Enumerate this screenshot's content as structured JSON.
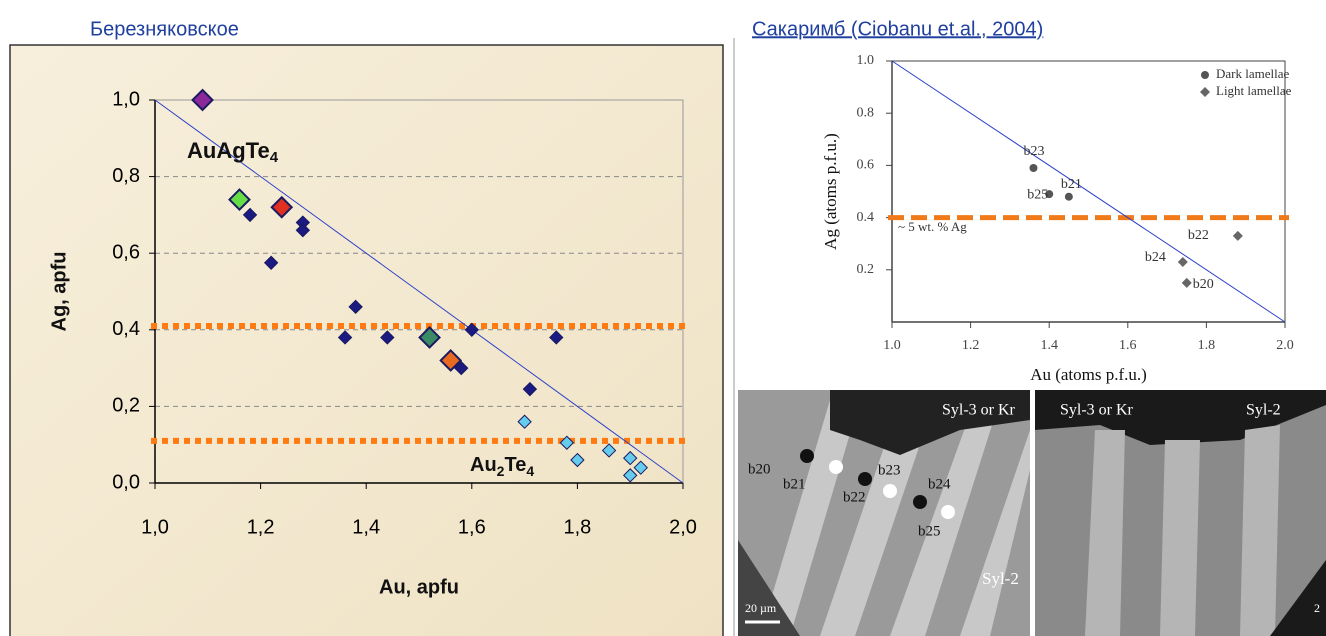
{
  "chart_data": [
    {
      "type": "scatter",
      "title": "Березняковское",
      "x_label": "Au, apfu",
      "y_label": "Ag, apfu",
      "xlim": [
        1.0,
        2.0
      ],
      "ylim": [
        0.0,
        1.0
      ],
      "xticks": [
        {
          "value": 1.0,
          "label": "1,0"
        },
        {
          "value": 1.2,
          "label": "1,2"
        },
        {
          "value": 1.4,
          "label": "1,4"
        },
        {
          "value": 1.6,
          "label": "1,6"
        },
        {
          "value": 1.8,
          "label": "1,8"
        },
        {
          "value": 2.0,
          "label": "2,0"
        }
      ],
      "yticks": [
        {
          "value": 0.0,
          "label": "0,0"
        },
        {
          "value": 0.2,
          "label": "0,2"
        },
        {
          "value": 0.4,
          "label": "0,4"
        },
        {
          "value": 0.6,
          "label": "0,6"
        },
        {
          "value": 0.8,
          "label": "0,8"
        },
        {
          "value": 1.0,
          "label": "1,0"
        }
      ],
      "grid": true,
      "annotations": [
        [
          "AuAgTe",
          "4"
        ],
        [
          "Au",
          "2",
          "Te",
          "4"
        ]
      ],
      "reference_lines": [
        {
          "x": [
            1.0,
            2.0
          ],
          "values": [
            1.0,
            0.0
          ],
          "color": "#2a3fc8"
        }
      ],
      "hlines": [
        {
          "value": 0.41,
          "color": "#ff7a10"
        },
        {
          "value": 0.11,
          "color": "#ff7a10"
        }
      ],
      "series": [
        {
          "color": "#1a1a80",
          "marker": "diamond",
          "x": [
            1.18,
            1.22,
            1.28,
            1.28,
            1.38,
            1.36,
            1.44,
            1.6,
            1.58,
            1.76,
            1.71
          ],
          "values": [
            0.7,
            0.575,
            0.68,
            0.66,
            0.46,
            0.38,
            0.38,
            0.4,
            0.3,
            0.38,
            0.245
          ]
        },
        {
          "color": "#66ccee",
          "marker": "diamond",
          "x": [
            1.7,
            1.78,
            1.8,
            1.86,
            1.9,
            1.9,
            1.92
          ],
          "values": [
            0.16,
            0.105,
            0.06,
            0.085,
            0.065,
            0.02,
            0.04
          ]
        },
        {
          "color": "#8a2a9a",
          "marker": "diamond-large",
          "x": [
            1.09
          ],
          "values": [
            1.0
          ]
        },
        {
          "color": "#66dd44",
          "marker": "diamond-large",
          "x": [
            1.16
          ],
          "values": [
            0.74
          ]
        },
        {
          "color": "#e03020",
          "marker": "diamond-large",
          "x": [
            1.24
          ],
          "values": [
            0.72
          ]
        },
        {
          "color": "#3a8a66",
          "marker": "diamond-large",
          "x": [
            1.52
          ],
          "values": [
            0.38
          ]
        },
        {
          "color": "#e86a20",
          "marker": "diamond-large",
          "x": [
            1.56
          ],
          "values": [
            0.32
          ]
        }
      ]
    },
    {
      "type": "scatter",
      "title": "Сакаримб (Ciobanu et.al., 2004)",
      "x_label": "Au (atoms p.f.u.)",
      "y_label": "Ag (atoms p.f.u.)",
      "xlim": [
        1.0,
        2.0
      ],
      "ylim": [
        0.0,
        1.0
      ],
      "xticks": [
        {
          "value": 1.0,
          "label": "1.0"
        },
        1.2,
        1.4,
        1.6,
        1.8,
        {
          "value": 2.0,
          "label": "2.0"
        }
      ],
      "yticks": [
        0.2,
        0.4,
        0.6,
        0.8,
        {
          "value": 1.0,
          "label": "1.0"
        }
      ],
      "grid": false,
      "legend": "top-right",
      "annotations": [
        "~ 5 wt. % Ag"
      ],
      "reference_lines": [
        {
          "x": [
            1.0,
            2.0
          ],
          "values": [
            1.0,
            0.0
          ],
          "color": "#2a3fc8"
        }
      ],
      "hlines": [
        {
          "value": 0.4,
          "color": "#f07a1a"
        }
      ],
      "series": [
        {
          "name": "Dark lamellae",
          "color": "#555555",
          "marker": "circle",
          "x": [
            1.36,
            1.4,
            1.45
          ],
          "values": [
            0.59,
            0.49,
            0.48
          ],
          "point_labels": [
            "b23",
            "b25",
            "b21"
          ]
        },
        {
          "name": "Light lamellae",
          "color": "#666666",
          "marker": "diamond",
          "x": [
            1.74,
            1.75,
            1.88
          ],
          "values": [
            0.23,
            0.15,
            0.33
          ],
          "point_labels": [
            "b24",
            "b20",
            "b22"
          ]
        }
      ]
    }
  ],
  "images": [
    {
      "labels": [
        "Syl-3 or Kr",
        "b20",
        "b21",
        "b22",
        "b23",
        "b24",
        "b25",
        "Syl-2",
        "20 µm"
      ]
    },
    {
      "labels": [
        "Syl-3 or Kr",
        "Syl-2",
        "2"
      ]
    }
  ]
}
